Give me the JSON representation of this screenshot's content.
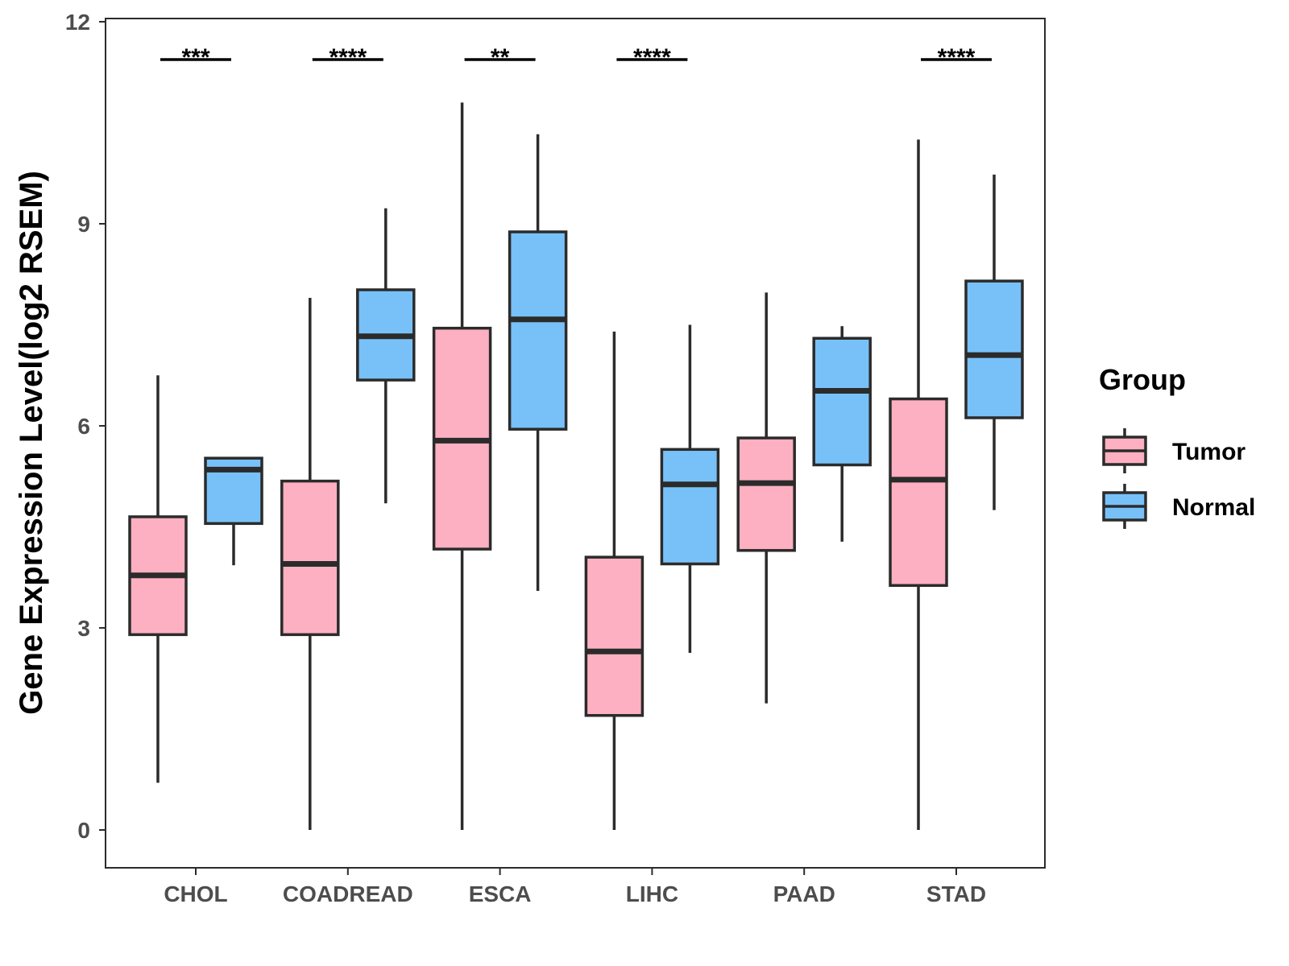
{
  "chart_data": {
    "type": "boxplot",
    "title": "",
    "xlabel": "",
    "ylabel": "Gene Expression Level(log2 RSEM)",
    "ylim": [
      -0.55,
      12.05
    ],
    "yticks": [
      0,
      3,
      6,
      9,
      12
    ],
    "grid": false,
    "legend": {
      "title": "Group",
      "placement": "right",
      "entries": [
        {
          "name": "Tumor",
          "color": "#FCB0C1"
        },
        {
          "name": "Normal",
          "color": "#78C1F8"
        }
      ]
    },
    "colors": {
      "Tumor": "#FCB0C1",
      "Normal": "#78C1F8",
      "outline": "#2b2b2b"
    },
    "categories": [
      {
        "name": "CHOL",
        "significance": "***",
        "tumor": {
          "min": 0.7,
          "q1": 2.9,
          "median": 3.78,
          "q3": 4.65,
          "max": 6.75
        },
        "normal": {
          "min": 3.93,
          "q1": 4.55,
          "median": 5.35,
          "q3": 5.52,
          "max": 5.52
        }
      },
      {
        "name": "COADREAD",
        "significance": "****",
        "tumor": {
          "min": 0.0,
          "q1": 2.9,
          "median": 3.95,
          "q3": 5.18,
          "max": 7.9
        },
        "normal": {
          "min": 4.85,
          "q1": 6.68,
          "median": 7.33,
          "q3": 8.02,
          "max": 9.23
        }
      },
      {
        "name": "ESCA",
        "significance": "**",
        "tumor": {
          "min": 0.0,
          "q1": 4.17,
          "median": 5.78,
          "q3": 7.45,
          "max": 10.8
        },
        "normal": {
          "min": 3.55,
          "q1": 5.95,
          "median": 7.58,
          "q3": 8.88,
          "max": 10.33
        }
      },
      {
        "name": "LIHC",
        "significance": "****",
        "tumor": {
          "min": 0.0,
          "q1": 1.7,
          "median": 2.65,
          "q3": 4.05,
          "max": 7.4
        },
        "normal": {
          "min": 2.63,
          "q1": 3.95,
          "median": 5.13,
          "q3": 5.65,
          "max": 7.5
        }
      },
      {
        "name": "PAAD",
        "significance": "",
        "tumor": {
          "min": 1.88,
          "q1": 4.15,
          "median": 5.15,
          "q3": 5.82,
          "max": 7.98
        },
        "normal": {
          "min": 4.28,
          "q1": 5.42,
          "median": 6.52,
          "q3": 7.3,
          "max": 7.48
        }
      },
      {
        "name": "STAD",
        "significance": "****",
        "tumor": {
          "min": 0.0,
          "q1": 3.63,
          "median": 5.2,
          "q3": 6.4,
          "max": 10.25
        },
        "normal": {
          "min": 4.75,
          "q1": 6.12,
          "median": 7.05,
          "q3": 8.15,
          "max": 9.73
        }
      }
    ]
  }
}
